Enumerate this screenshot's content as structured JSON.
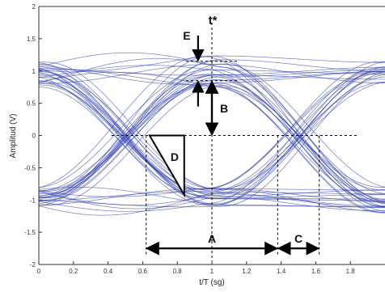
{
  "chart_data": {
    "type": "line",
    "title": "",
    "xlabel": "t/T (sg)",
    "ylabel": "Amplitud (V)",
    "xlim": [
      0,
      2
    ],
    "ylim": [
      -2,
      2
    ],
    "x_ticks": [
      0,
      0.2,
      0.4,
      0.6,
      0.8,
      1,
      1.2,
      1.4,
      1.6,
      1.8
    ],
    "x_tick_labels": [
      "0",
      "0.2",
      "0.4",
      "0.6",
      "0.8",
      "1",
      "1.2",
      "1.4",
      "1.6",
      "1.8"
    ],
    "y_ticks": [
      -2,
      -1.5,
      -1,
      -0.5,
      0,
      0.5,
      1,
      1.5,
      2
    ],
    "y_tick_labels": [
      "-2",
      "-1.5",
      "-1",
      "-0.5",
      "0",
      "0.5",
      "1",
      "1.5",
      "2"
    ],
    "grid": false,
    "trace_color": "#2f3fb0",
    "eye_traces": {
      "levels": [
        -1,
        1
      ],
      "crossings_x": [
        0.62,
        1.38
      ],
      "level_spread": [
        -0.26,
        0.24
      ],
      "top_overshoot_max": 1.3
    },
    "annotations": {
      "t_star": {
        "label": "t*",
        "x": 1
      },
      "threshold_y": 0,
      "A": {
        "label": "A",
        "x_range": [
          0.62,
          1.38
        ],
        "y": -1.75
      },
      "B": {
        "label": "B",
        "x": 1,
        "y_range": [
          0,
          0.85
        ]
      },
      "C": {
        "label": "C",
        "x_range": [
          1.38,
          1.62
        ],
        "y": -1.75
      },
      "D": {
        "label": "D"
      },
      "E": {
        "label": "E",
        "x": 0.92,
        "y_range": [
          0.85,
          1.15
        ]
      }
    }
  }
}
